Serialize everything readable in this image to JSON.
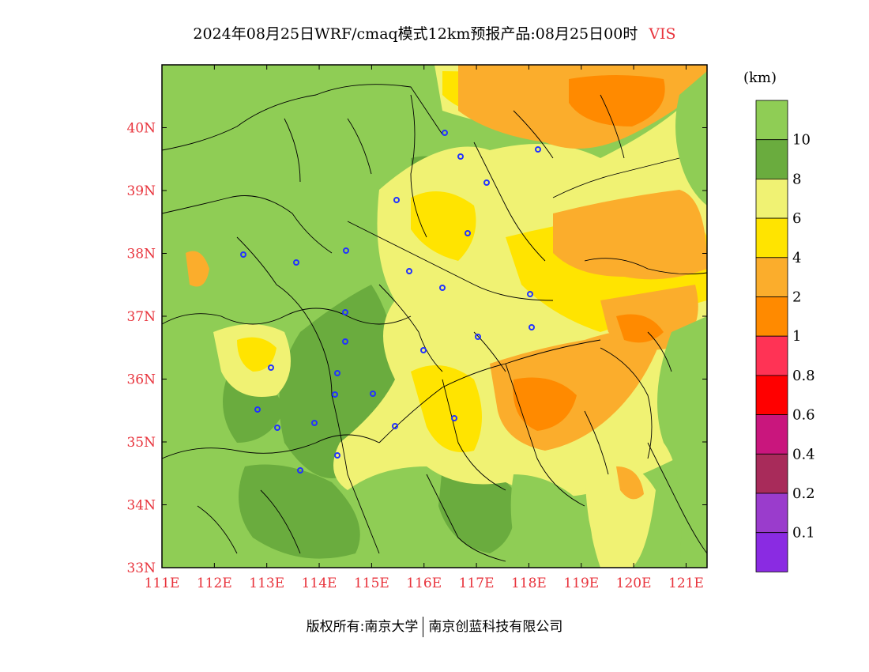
{
  "title": {
    "text": "2024年08月25日WRF/cmaq模式12km预报产品:08月25日00时",
    "variable": "VIS"
  },
  "unit": "(km)",
  "axes": {
    "lon_ticks": [
      "111E",
      "112E",
      "113E",
      "114E",
      "115E",
      "116E",
      "117E",
      "118E",
      "119E",
      "120E",
      "121E"
    ],
    "lat_ticks": [
      "33N",
      "34N",
      "35N",
      "36N",
      "37N",
      "38N",
      "39N",
      "40N"
    ],
    "tick_color": "#e8333c",
    "lon_range": [
      111,
      121.4
    ],
    "lat_range": [
      33,
      41
    ]
  },
  "legend": {
    "labels": [
      "10",
      "8",
      "6",
      "4",
      "2",
      "1",
      "0.8",
      "0.6",
      "0.4",
      "0.2",
      "0.1"
    ],
    "colors": [
      "#8fcd55",
      "#6aac3e",
      "#f0f273",
      "#ffe400",
      "#fbad2c",
      "#ff8a00",
      "#ff3355",
      "#ff0000",
      "#c9167d",
      "#a82b5a",
      "#9a3ccc",
      "#8a2be2"
    ]
  },
  "footer": {
    "left": "版权所有:南京大学",
    "right": "南京创蓝科技有限公司"
  }
}
